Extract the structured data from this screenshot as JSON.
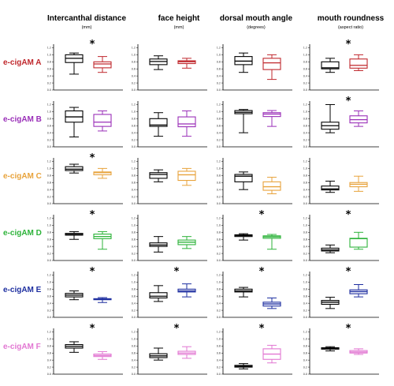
{
  "chart_data": {
    "type": "boxplot",
    "columns": [
      {
        "title": "Intercanthal distance",
        "unit": "(mm)"
      },
      {
        "title": "face height",
        "unit": "(mm)"
      },
      {
        "title": "dorsal mouth angle",
        "unit": "(degrees)"
      },
      {
        "title": "mouth roundness",
        "unit": "(aspect ratio)"
      }
    ],
    "rows": [
      {
        "label": "e-cigAM A",
        "color": "#c0282d"
      },
      {
        "label": "e-cigAM B",
        "color": "#9a2fb8"
      },
      {
        "label": "e-cigAM C",
        "color": "#e8a33c"
      },
      {
        "label": "e-cigAM D",
        "color": "#2db33a"
      },
      {
        "label": "e-cigAM E",
        "color": "#1e2fa0"
      },
      {
        "label": "e-cigAM F",
        "color": "#e277d2"
      }
    ],
    "control_color": "#000000",
    "y_ticks": [
      "0.0",
      "0.2",
      "0.4",
      "0.6",
      "0.8",
      "1.0",
      "1.2"
    ],
    "significance_marker": "*",
    "panels": [
      [
        {
          "ctrl": [
            0.45,
            0.78,
            0.9,
            1.0,
            1.05
          ],
          "exp": [
            0.5,
            0.63,
            0.74,
            0.8,
            0.95
          ],
          "star": "*"
        },
        {
          "ctrl": [
            0.58,
            0.72,
            0.81,
            0.88,
            0.97
          ],
          "exp": [
            0.62,
            0.75,
            0.8,
            0.83,
            0.9
          ],
          "star": ""
        },
        {
          "ctrl": [
            0.5,
            0.72,
            0.82,
            0.95,
            1.05
          ],
          "exp": [
            0.3,
            0.58,
            0.77,
            0.9,
            1.0
          ],
          "star": ""
        },
        {
          "ctrl": [
            0.5,
            0.6,
            0.63,
            0.8,
            0.9
          ],
          "exp": [
            0.55,
            0.62,
            0.7,
            0.88,
            1.0
          ],
          "star": "*"
        }
      ],
      [
        {
          "ctrl": [
            0.28,
            0.7,
            0.85,
            1.02,
            1.12
          ],
          "exp": [
            0.45,
            0.58,
            0.7,
            0.92,
            1.02
          ],
          "star": ""
        },
        {
          "ctrl": [
            0.3,
            0.58,
            0.62,
            0.8,
            0.97
          ],
          "exp": [
            0.3,
            0.57,
            0.65,
            0.85,
            1.02
          ],
          "star": ""
        },
        {
          "ctrl": [
            0.4,
            0.94,
            0.98,
            1.03,
            1.06
          ],
          "exp": [
            0.58,
            0.86,
            0.93,
            0.97,
            1.03
          ],
          "star": ""
        },
        {
          "ctrl": [
            0.4,
            0.5,
            0.6,
            0.7,
            1.2
          ],
          "exp": [
            0.58,
            0.68,
            0.77,
            0.88,
            1.02
          ],
          "star": "*"
        }
      ],
      [
        {
          "ctrl": [
            0.87,
            0.94,
            0.98,
            1.05,
            1.12
          ],
          "exp": [
            0.72,
            0.82,
            0.88,
            0.9,
            1.0
          ],
          "star": "*"
        },
        {
          "ctrl": [
            0.62,
            0.72,
            0.83,
            0.88,
            0.96
          ],
          "exp": [
            0.52,
            0.66,
            0.82,
            0.92,
            1.0
          ],
          "star": ""
        },
        {
          "ctrl": [
            0.4,
            0.62,
            0.78,
            0.83,
            0.9
          ],
          "exp": [
            0.28,
            0.38,
            0.48,
            0.62,
            0.75
          ],
          "star": ""
        },
        {
          "ctrl": [
            0.32,
            0.39,
            0.42,
            0.5,
            0.64
          ],
          "exp": [
            0.35,
            0.48,
            0.55,
            0.6,
            0.78
          ],
          "star": ""
        }
      ],
      [
        {
          "ctrl": [
            0.6,
            0.72,
            0.74,
            0.77,
            0.82
          ],
          "exp": [
            0.32,
            0.62,
            0.68,
            0.75,
            0.82
          ],
          "star": "*"
        },
        {
          "ctrl": [
            0.24,
            0.4,
            0.44,
            0.5,
            0.68
          ],
          "exp": [
            0.34,
            0.45,
            0.52,
            0.58,
            0.68
          ],
          "star": ""
        },
        {
          "ctrl": [
            0.58,
            0.68,
            0.71,
            0.73,
            0.76
          ],
          "exp": [
            0.32,
            0.63,
            0.67,
            0.7,
            0.74
          ],
          "star": "*"
        },
        {
          "ctrl": [
            0.22,
            0.27,
            0.3,
            0.35,
            0.44
          ],
          "exp": [
            0.32,
            0.38,
            0.62,
            0.63,
            0.8
          ],
          "star": "*"
        }
      ],
      [
        {
          "ctrl": [
            0.5,
            0.58,
            0.63,
            0.68,
            0.75
          ],
          "exp": [
            0.42,
            0.5,
            0.51,
            0.53,
            0.56
          ],
          "star": "*"
        },
        {
          "ctrl": [
            0.45,
            0.55,
            0.6,
            0.7,
            0.9
          ],
          "exp": [
            0.58,
            0.72,
            0.75,
            0.8,
            0.95
          ],
          "star": "*"
        },
        {
          "ctrl": [
            0.58,
            0.72,
            0.75,
            0.8,
            0.85
          ],
          "exp": [
            0.25,
            0.32,
            0.38,
            0.43,
            0.55
          ],
          "star": "*"
        },
        {
          "ctrl": [
            0.25,
            0.37,
            0.43,
            0.48,
            0.57
          ],
          "exp": [
            0.58,
            0.67,
            0.73,
            0.78,
            0.93
          ],
          "star": "*"
        }
      ],
      [
        {
          "ctrl": [
            0.62,
            0.74,
            0.79,
            0.84,
            0.92
          ],
          "exp": [
            0.42,
            0.5,
            0.53,
            0.57,
            0.64
          ],
          "star": "*"
        },
        {
          "ctrl": [
            0.4,
            0.47,
            0.52,
            0.58,
            0.74
          ],
          "exp": [
            0.45,
            0.56,
            0.6,
            0.65,
            0.78
          ],
          "star": "*"
        },
        {
          "ctrl": [
            0.15,
            0.2,
            0.22,
            0.25,
            0.3
          ],
          "exp": [
            0.32,
            0.42,
            0.57,
            0.72,
            0.82
          ],
          "star": "*"
        },
        {
          "ctrl": [
            0.66,
            0.71,
            0.73,
            0.75,
            0.78
          ],
          "exp": [
            0.56,
            0.6,
            0.63,
            0.67,
            0.72
          ],
          "star": "*"
        }
      ]
    ]
  }
}
